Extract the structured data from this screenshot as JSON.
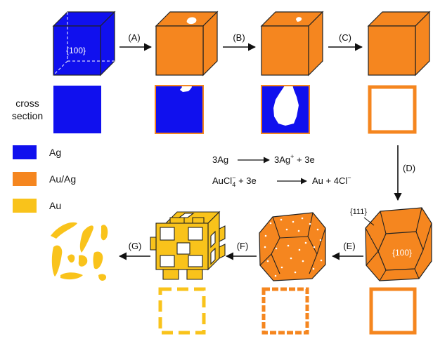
{
  "colors": {
    "ag": "#1010ee",
    "au_ag": "#f5861f",
    "au": "#f9c31b",
    "edge": "#222222",
    "void": "#ffffff"
  },
  "steps": {
    "a": "(A)",
    "b": "(B)",
    "c": "(C)",
    "d": "(D)",
    "e": "(E)",
    "f": "(F)",
    "g": "(G)"
  },
  "cross_section_label": [
    "cross",
    "section"
  ],
  "facets": {
    "cube_face": "{100}",
    "octa_111": "{111}",
    "octa_100": "{100}"
  },
  "legend": [
    {
      "key": "ag",
      "label": "Ag"
    },
    {
      "key": "au_ag",
      "label": "Au/Ag"
    },
    {
      "key": "au",
      "label": "Au"
    }
  ],
  "equations": {
    "eq1_left": "3Ag",
    "eq1_right_base": "3Ag",
    "eq1_right_sup": "+",
    "eq1_right_tail": " + 3e",
    "eq2_left_base": "AuCl",
    "eq2_left_sub": "4",
    "eq2_left_sup": "−",
    "eq2_left_tail": " + 3e",
    "eq2_right_base": "Au + 4Cl",
    "eq2_right_sup": "−"
  }
}
